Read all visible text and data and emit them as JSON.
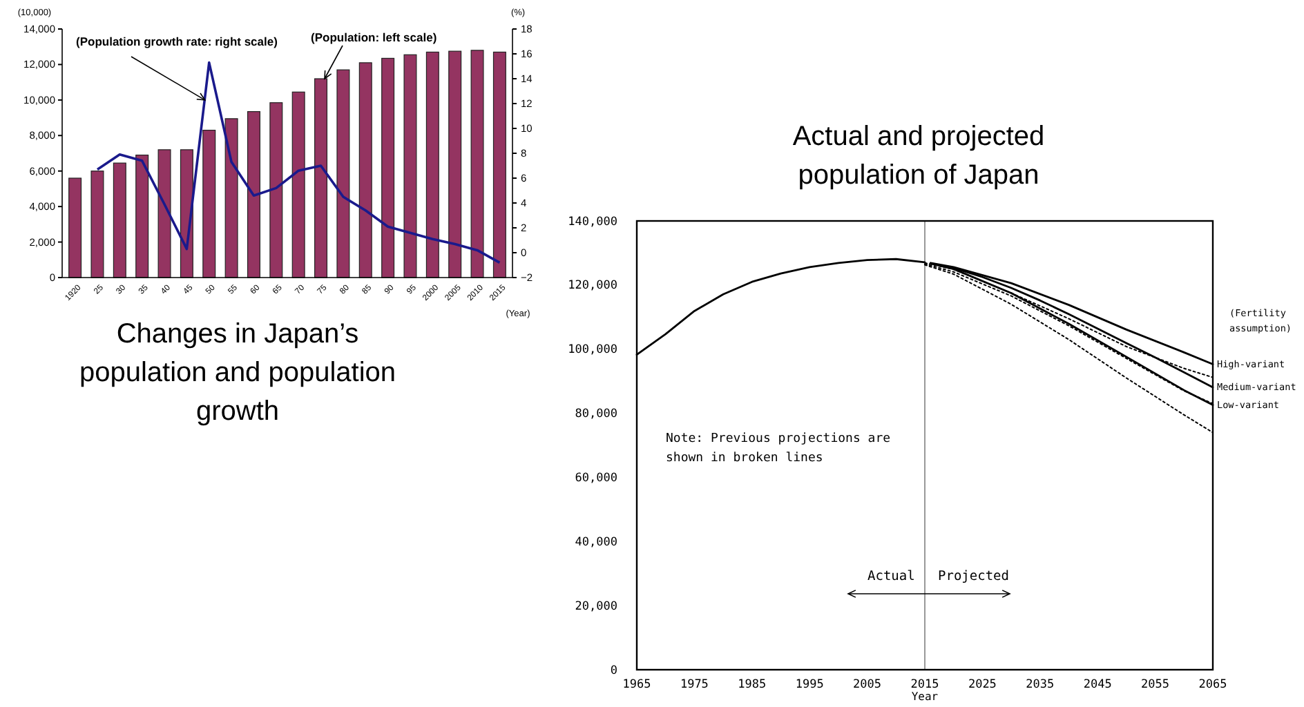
{
  "chart_data": [
    {
      "type": "bar",
      "title": "Changes in Japan’s population and population growth",
      "ylabel": "(10,000)",
      "y2label": "(%)",
      "xlabel": "(Year)",
      "categories": [
        "1920",
        "25",
        "30",
        "35",
        "40",
        "45",
        "50",
        "55",
        "60",
        "65",
        "70",
        "75",
        "80",
        "85",
        "90",
        "95",
        "2000",
        "2005",
        "2010",
        "2015"
      ],
      "series": [
        {
          "type": "bar",
          "color": "#943461",
          "values": [
            5600,
            6000,
            6450,
            6900,
            7200,
            7200,
            8300,
            8950,
            9350,
            9850,
            10450,
            11200,
            11700,
            12100,
            12350,
            12550,
            12700,
            12750,
            12800,
            12700
          ]
        },
        {
          "type": "line",
          "axis": "y2",
          "color": "#1a1a8c",
          "values": [
            null,
            6.7,
            7.9,
            7.4,
            3.9,
            0.3,
            15.3,
            7.3,
            4.6,
            5.2,
            6.6,
            7.0,
            4.5,
            3.4,
            2.1,
            1.6,
            1.1,
            0.7,
            0.2,
            -0.8
          ]
        }
      ],
      "ylim": [
        0,
        14000
      ],
      "yticks": [
        0,
        {
          "value": 2000,
          "label": "2,000"
        },
        {
          "value": 4000,
          "label": "4,000"
        },
        {
          "value": 6000,
          "label": "6,000"
        },
        {
          "value": 8000,
          "label": "8,000"
        },
        {
          "value": 10000,
          "label": "10,000"
        },
        {
          "value": 12000,
          "label": "12,000"
        },
        {
          "value": 14000,
          "label": "14,000"
        }
      ],
      "y2lim": [
        -2,
        18
      ],
      "y2ticks": [
        -2,
        0,
        2,
        4,
        6,
        8,
        10,
        12,
        14,
        16,
        18
      ],
      "annotations": [
        {
          "text": "(Population growth rate: right scale)",
          "x": "50",
          "y": 10000
        },
        "(Population: left scale)"
      ]
    },
    {
      "type": "line",
      "title": "Actual and projected population of Japan",
      "xlabel": "Year",
      "legend_title": "(Fertility assumption)",
      "series": [
        {
          "color": "#000000",
          "line_style": "solid",
          "x": [
            1965,
            1970,
            1975,
            1980,
            1985,
            1990,
            1995,
            2000,
            2005,
            2010,
            2015
          ],
          "values": [
            98300,
            104700,
            111900,
            117100,
            121000,
            123600,
            125600,
            126900,
            127800,
            128100,
            127100
          ]
        },
        {
          "color": "#000000",
          "line_style": "dotted",
          "x": [
            2015,
            2020,
            2030,
            2040,
            2050,
            2060,
            2065
          ],
          "values": [
            126900,
            124900,
            117500,
            109500,
            100800,
            94000,
            91200
          ]
        },
        {
          "color": "#000000",
          "line_style": "dotted",
          "x": [
            2015,
            2020,
            2030,
            2040,
            2050,
            2060,
            2065
          ],
          "values": [
            126600,
            124100,
            116600,
            107300,
            97100,
            87000,
            83000
          ]
        },
        {
          "color": "#000000",
          "line_style": "dotted",
          "x": [
            2015,
            2020,
            2030,
            2040,
            2050,
            2060,
            2065
          ],
          "values": [
            126300,
            123400,
            114000,
            103000,
            91000,
            79500,
            74000
          ]
        },
        {
          "name": "High-variant",
          "color": "#000000",
          "line_style": "solid",
          "x": [
            2016,
            2020,
            2030,
            2040,
            2050,
            2060,
            2065
          ],
          "values": [
            126900,
            125600,
            120600,
            113800,
            106100,
            99000,
            95300
          ]
        },
        {
          "name": "Medium-variant",
          "color": "#000000",
          "line_style": "solid",
          "x": [
            2016,
            2020,
            2025,
            2030,
            2035,
            2040,
            2045,
            2050,
            2055,
            2060,
            2065
          ],
          "values": [
            126800,
            125300,
            122500,
            119100,
            115200,
            110900,
            106400,
            101900,
            97400,
            92800,
            88100
          ]
        },
        {
          "name": "Low-variant",
          "color": "#000000",
          "line_style": "solid",
          "x": [
            2016,
            2020,
            2030,
            2040,
            2050,
            2060,
            2065
          ],
          "values": [
            126700,
            125000,
            117500,
            107900,
            97600,
            87200,
            82600
          ]
        }
      ],
      "xlim": [
        1965,
        2065
      ],
      "xticks": [
        1965,
        1975,
        1985,
        1995,
        2005,
        2015,
        2025,
        2035,
        2045,
        2055,
        2065
      ],
      "ylim": [
        0,
        140000
      ],
      "yticks": [
        0,
        {
          "value": 20000,
          "label": "20,000"
        },
        {
          "value": 40000,
          "label": "40,000"
        },
        {
          "value": 60000,
          "label": "60,000"
        },
        {
          "value": 80000,
          "label": "80,000"
        },
        {
          "value": 100000,
          "label": "100,000"
        },
        {
          "value": 120000,
          "label": "120,000"
        },
        {
          "value": 140000,
          "label": "140,000"
        }
      ],
      "ref_lines": [
        {
          "axis": "x",
          "value": 2015,
          "color": "#999999"
        }
      ],
      "annotations": [
        "Note: Previous projections are shown in broken lines",
        "Actual",
        "Projected"
      ]
    }
  ]
}
